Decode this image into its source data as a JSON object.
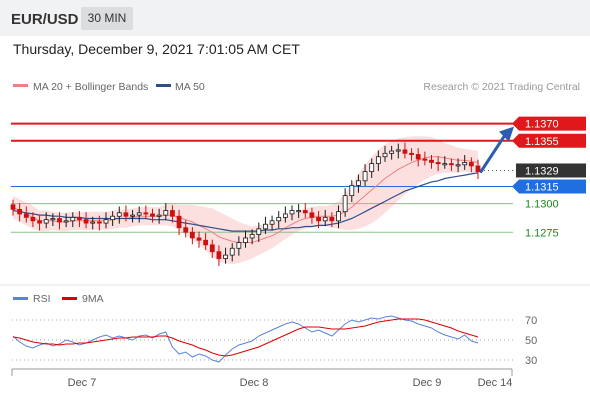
{
  "header": {
    "symbol": "EUR/USD",
    "timeframe": "30 MIN",
    "datetime": "Thursday, December 9, 2021 7:01:05 AM CET"
  },
  "legend": [
    {
      "label": "MA 20 + Bollinger Bands",
      "color": "#f08080"
    },
    {
      "label": "MA 50",
      "color": "#2c4f8c"
    }
  ],
  "copyright": "Research © 2021 Trading Central",
  "colors": {
    "resistance": "#e0181b",
    "current": "#333333",
    "pivot": "#1f6fe0",
    "support": "#1e8a1e",
    "candle_up": "#1a1a1a",
    "candle_down": "#cc1111",
    "arrow": "#2a5db0",
    "band": "#fbd6d6",
    "rsi": "#5a84d8",
    "rsi_ma": "#dd0000"
  },
  "chart_data": [
    {
      "type": "candlestick",
      "title": "EUR/USD",
      "ylim": [
        1.1235,
        1.1395
      ],
      "x_ticks": [
        "Dec 7",
        "Dec 8",
        "Dec 9",
        "Dec 14"
      ],
      "levels": [
        {
          "name": "resistance-2",
          "value": 1.137,
          "label": "1.1370",
          "kind": "resistance"
        },
        {
          "name": "resistance-1",
          "value": 1.1355,
          "label": "1.1355",
          "kind": "resistance"
        },
        {
          "name": "last-price",
          "value": 1.1329,
          "label": "1.1329",
          "kind": "current"
        },
        {
          "name": "pivot",
          "value": 1.1315,
          "label": "1.1315",
          "kind": "pivot"
        },
        {
          "name": "support-1",
          "value": 1.13,
          "label": "1.1300",
          "kind": "support"
        },
        {
          "name": "support-2",
          "value": 1.1275,
          "label": "1.1275",
          "kind": "support"
        }
      ],
      "closes": [
        1.1295,
        1.1291,
        1.1288,
        1.1285,
        1.1283,
        1.1286,
        1.1287,
        1.1284,
        1.1285,
        1.1288,
        1.1286,
        1.1283,
        1.1284,
        1.1283,
        1.1286,
        1.1289,
        1.1292,
        1.1289,
        1.129,
        1.1292,
        1.1291,
        1.1289,
        1.129,
        1.1294,
        1.1289,
        1.1279,
        1.1275,
        1.127,
        1.1268,
        1.1264,
        1.1258,
        1.1252,
        1.1255,
        1.1261,
        1.1266,
        1.127,
        1.1273,
        1.1278,
        1.1282,
        1.1285,
        1.1288,
        1.1291,
        1.1294,
        1.1294,
        1.1292,
        1.1288,
        1.1285,
        1.1288,
        1.1285,
        1.1293,
        1.1307,
        1.1316,
        1.132,
        1.1328,
        1.1335,
        1.1341,
        1.1344,
        1.1346,
        1.1347,
        1.1344,
        1.1343,
        1.1339,
        1.1338,
        1.1336,
        1.1335,
        1.1335,
        1.1334,
        1.1334,
        1.1336,
        1.1333,
        1.1328
      ],
      "ma20": [
        1.1297,
        1.1294,
        1.1291,
        1.1288,
        1.1285,
        1.1285,
        1.1285,
        1.1284,
        1.1284,
        1.1285,
        1.1285,
        1.1285,
        1.1285,
        1.1285,
        1.1285,
        1.1286,
        1.1287,
        1.1287,
        1.1288,
        1.1289,
        1.1289,
        1.1289,
        1.1289,
        1.129,
        1.129,
        1.1288,
        1.1286,
        1.1284,
        1.1281,
        1.1278,
        1.1275,
        1.1271,
        1.1269,
        1.1267,
        1.1266,
        1.1266,
        1.1266,
        1.1268,
        1.127,
        1.1272,
        1.1275,
        1.1279,
        1.1282,
        1.1285,
        1.1287,
        1.1288,
        1.1289,
        1.1289,
        1.1289,
        1.129,
        1.1293,
        1.1297,
        1.1302,
        1.1307,
        1.1312,
        1.1317,
        1.1322,
        1.1326,
        1.133,
        1.1333,
        1.1336,
        1.1338,
        1.134,
        1.1341,
        1.1341,
        1.134,
        1.1339,
        1.1338,
        1.1338,
        1.1337,
        1.1336
      ],
      "ma50": [
        1.1294,
        1.1293,
        1.1292,
        1.1291,
        1.129,
        1.129,
        1.1289,
        1.1289,
        1.1288,
        1.1288,
        1.1288,
        1.1287,
        1.1287,
        1.1287,
        1.1287,
        1.1287,
        1.1287,
        1.1287,
        1.1287,
        1.1287,
        1.1287,
        1.1286,
        1.1286,
        1.1286,
        1.1285,
        1.1284,
        1.1283,
        1.1282,
        1.1281,
        1.128,
        1.1279,
        1.1278,
        1.1277,
        1.1276,
        1.1276,
        1.1276,
        1.1276,
        1.1276,
        1.1277,
        1.1277,
        1.1278,
        1.1278,
        1.1279,
        1.1279,
        1.128,
        1.128,
        1.1281,
        1.1281,
        1.1282,
        1.1283,
        1.1285,
        1.1287,
        1.129,
        1.1293,
        1.1296,
        1.1299,
        1.1302,
        1.1305,
        1.1308,
        1.1311,
        1.1313,
        1.1315,
        1.1317,
        1.1319,
        1.132,
        1.1322,
        1.1323,
        1.1324,
        1.1325,
        1.1326,
        1.1327
      ],
      "band_width": [
        0.001,
        0.001,
        0.001,
        0.001,
        0.0009,
        0.0009,
        0.0008,
        0.0008,
        0.0008,
        0.0008,
        0.0008,
        0.0008,
        0.0008,
        0.0008,
        0.0008,
        0.0008,
        0.0008,
        0.0008,
        0.0008,
        0.0008,
        0.0008,
        0.0008,
        0.0008,
        0.0009,
        0.001,
        0.0011,
        0.0013,
        0.0015,
        0.0017,
        0.0019,
        0.0021,
        0.0022,
        0.0021,
        0.002,
        0.0018,
        0.0016,
        0.0014,
        0.0013,
        0.0012,
        0.0011,
        0.001,
        0.001,
        0.0009,
        0.0009,
        0.0009,
        0.0009,
        0.0009,
        0.0009,
        0.001,
        0.0012,
        0.0016,
        0.002,
        0.0024,
        0.0027,
        0.0029,
        0.003,
        0.003,
        0.0029,
        0.0027,
        0.0025,
        0.0023,
        0.0021,
        0.0019,
        0.0017,
        0.0015,
        0.0013,
        0.0012,
        0.0011,
        0.001,
        0.001,
        0.001
      ],
      "forecast_arrow": {
        "from": 1.1329,
        "to": 1.137
      }
    },
    {
      "type": "line",
      "title": "RSI",
      "ylim": [
        20,
        80
      ],
      "y_ticks": [
        "70",
        "50",
        "30"
      ],
      "series": [
        {
          "name": "RSI",
          "values": [
            54,
            48,
            44,
            42,
            45,
            47,
            44,
            46,
            50,
            48,
            45,
            47,
            50,
            53,
            55,
            52,
            54,
            52,
            50,
            54,
            55,
            52,
            56,
            58,
            43,
            36,
            38,
            33,
            36,
            34,
            30,
            28,
            35,
            41,
            45,
            47,
            49,
            54,
            57,
            60,
            63,
            66,
            68,
            66,
            62,
            58,
            60,
            57,
            54,
            60,
            66,
            70,
            68,
            70,
            72,
            71,
            73,
            74,
            72,
            70,
            69,
            66,
            64,
            62,
            58,
            55,
            53,
            51,
            55,
            49,
            47
          ]
        },
        {
          "name": "9MA",
          "values": [
            53,
            52,
            50,
            48,
            47,
            46,
            46,
            45,
            46,
            46,
            47,
            47,
            48,
            49,
            50,
            51,
            52,
            52,
            53,
            53,
            53,
            53,
            54,
            54,
            52,
            49,
            47,
            45,
            42,
            40,
            37,
            35,
            34,
            35,
            37,
            39,
            41,
            43,
            46,
            49,
            52,
            55,
            58,
            61,
            63,
            63,
            63,
            62,
            61,
            61,
            61,
            62,
            63,
            64,
            66,
            68,
            69,
            70,
            71,
            71,
            71,
            71,
            70,
            68,
            66,
            64,
            62,
            59,
            57,
            55,
            53
          ]
        }
      ]
    }
  ]
}
